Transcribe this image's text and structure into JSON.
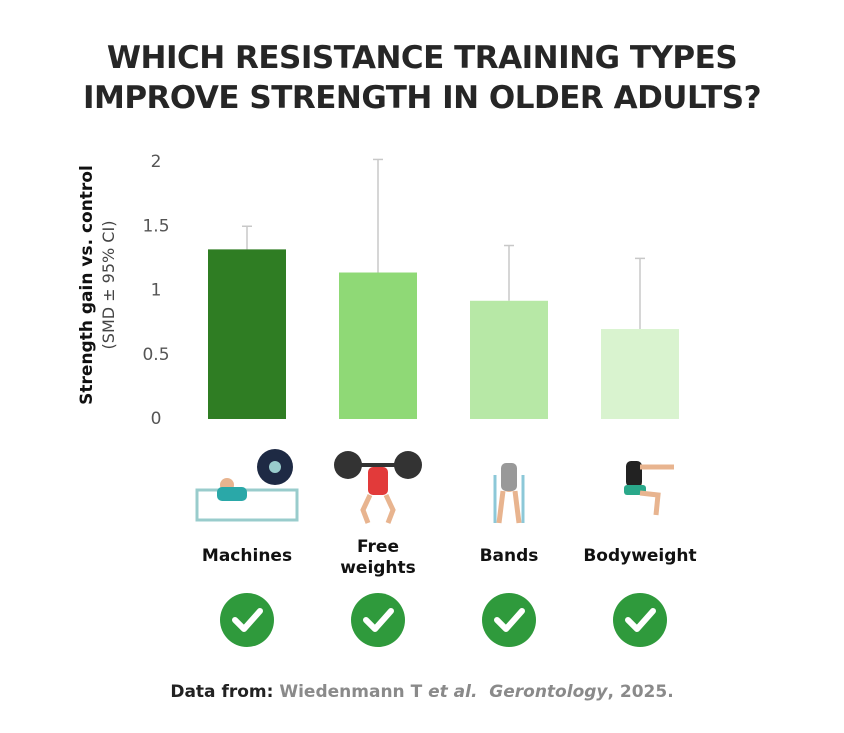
{
  "chart_data": {
    "type": "bar",
    "title": [
      "WHICH RESISTANCE TRAINING TYPES",
      "IMPROVE STRENGTH IN OLDER ADULTS?"
    ],
    "ylabel": "Strength gain vs. control",
    "ylabel_note": "(SMD ± 95% CI)",
    "categories": [
      "Machines",
      "Free weights",
      "Bands",
      "Bodyweight"
    ],
    "values": [
      1.32,
      1.14,
      0.92,
      0.7
    ],
    "errors": [
      0.18,
      0.88,
      0.43,
      0.55
    ],
    "colors": [
      "#2f7d23",
      "#8fd976",
      "#b7e8a6",
      "#d9f3cf"
    ],
    "error_color": "#c8c8c8",
    "ylim": [
      0,
      2
    ],
    "yticks": [
      0,
      0.5,
      1,
      1.5,
      2
    ],
    "grid": false,
    "source": {
      "label": "Data from:",
      "authors": "Wiedenmann T",
      "etal": "et al.",
      "journal": "Gerontology",
      "year": ", 2025."
    }
  }
}
